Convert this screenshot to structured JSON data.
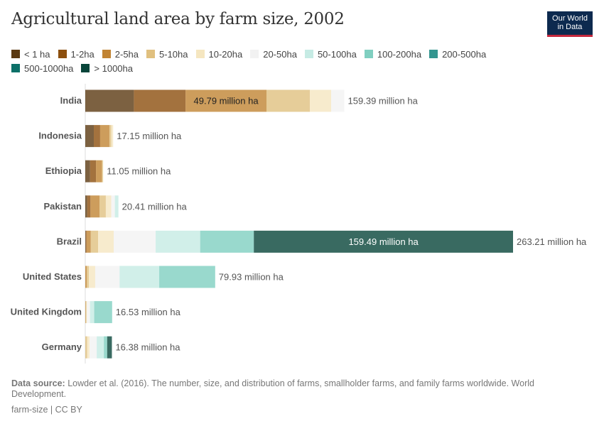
{
  "title": "Agricultural land area by farm size, 2002",
  "logo": {
    "line1": "Our World",
    "line2": "in Data"
  },
  "footer": {
    "source_label": "Data source:",
    "source_text": " Lowder et al. (2016). The number, size, and distribution of farms, smallholder farms, and family farms worldwide. World Development.",
    "license": "farm-size | CC BY"
  },
  "chart_data": {
    "type": "bar",
    "orientation": "horizontal",
    "stacked": true,
    "title": "Agricultural land area by farm size, 2002",
    "unit": "million ha",
    "legend_position": "top",
    "categories": [
      "India",
      "Indonesia",
      "Ethiopia",
      "Pakistan",
      "Brazil",
      "United States",
      "United Kingdom",
      "Germany"
    ],
    "totals": [
      159.39,
      17.15,
      11.05,
      20.41,
      263.21,
      79.93,
      16.53,
      16.38
    ],
    "total_labels": [
      "159.39 million ha",
      "17.15 million ha",
      "11.05 million ha",
      "20.41 million ha",
      "263.21 million ha",
      "79.93 million ha",
      "16.53 million ha",
      "16.38 million ha"
    ],
    "series": [
      {
        "name": "< 1 ha",
        "color": "#5b3a12",
        "values": [
          29.9,
          5.25,
          2.95,
          1.2,
          0.3,
          0,
          0,
          0
        ]
      },
      {
        "name": "1-2ha",
        "color": "#8c4f0e",
        "values": [
          31.8,
          3.9,
          3.65,
          2.0,
          0.5,
          0,
          0,
          0
        ]
      },
      {
        "name": "2-5ha",
        "color": "#c18433",
        "values": [
          49.79,
          5.7,
          3.7,
          5.55,
          2.6,
          1.0,
          0.3,
          0
        ]
      },
      {
        "name": "5-10ha",
        "color": "#e0c07f",
        "values": [
          26.7,
          1.2,
          0.55,
          3.9,
          4.5,
          1.2,
          0.4,
          1.2
        ]
      },
      {
        "name": "10-20ha",
        "color": "#f5e6c0",
        "values": [
          13.1,
          1.1,
          0.2,
          3.35,
          9.6,
          3.9,
          0.3,
          1.45
        ]
      },
      {
        "name": "20-50ha",
        "color": "#f2f2f2",
        "values": [
          8.1,
          0,
          0,
          2.2,
          25.8,
          15.0,
          1.9,
          4.4
        ]
      },
      {
        "name": "50-100ha",
        "color": "#c6ebe4",
        "values": [
          0,
          0,
          0,
          2.21,
          27.4,
          24.4,
          2.6,
          4.4
        ]
      },
      {
        "name": "100-200ha",
        "color": "#80cfc0",
        "values": [
          0,
          0,
          0,
          0,
          33.02,
          34.43,
          11.03,
          2.03
        ]
      },
      {
        "name": "200-500ha",
        "color": "#349690",
        "values": [
          0,
          0,
          0,
          0,
          0,
          0,
          0,
          0
        ]
      },
      {
        "name": "500-1000ha",
        "color": "#0c7068",
        "values": [
          0,
          0,
          0,
          0,
          0,
          0,
          0,
          0
        ]
      },
      {
        "name": "> 1000ha",
        "color": "#08453a",
        "values": [
          0,
          0,
          0,
          0,
          159.49,
          0,
          0,
          2.9
        ]
      }
    ],
    "segment_labels": [
      {
        "category": "India",
        "series": "2-5ha",
        "text": "49.79 million ha"
      },
      {
        "category": "Brazil",
        "series": "> 1000ha",
        "text": "159.49 million ha"
      }
    ],
    "xlim": [
      0,
      263.21
    ],
    "grid": false
  }
}
